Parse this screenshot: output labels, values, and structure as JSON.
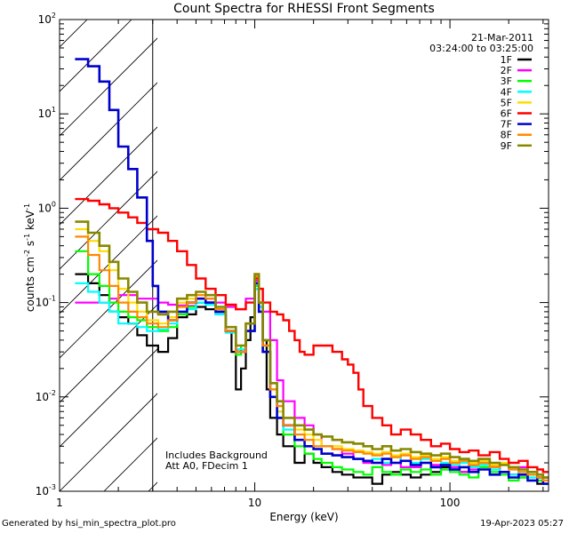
{
  "chart_data": {
    "type": "line",
    "title": "Count Spectra for RHESSI Front Segments",
    "xlabel": "Energy (keV)",
    "ylabel": "counts cm",
    "ylabel_units": {
      "sup1": "-2",
      "mid": " s",
      "sup2": "-1",
      "mid2": " keV",
      "sup3": "-1"
    },
    "xscale": "log",
    "yscale": "log",
    "xlim": [
      1,
      320
    ],
    "ylim": [
      0.001,
      100
    ],
    "x_ticks": [
      {
        "v": 1,
        "label": "1"
      },
      {
        "v": 10,
        "label": "10"
      },
      {
        "v": 100,
        "label": "100"
      }
    ],
    "y_ticks": [
      {
        "v": 0.001,
        "base": "10",
        "exp": "-3"
      },
      {
        "v": 0.01,
        "base": "10",
        "exp": "-2"
      },
      {
        "v": 0.1,
        "base": "10",
        "exp": "-1"
      },
      {
        "v": 1,
        "base": "10",
        "exp": "0"
      },
      {
        "v": 10,
        "base": "10",
        "exp": "1"
      },
      {
        "v": 100,
        "base": "10",
        "exp": "2"
      }
    ],
    "date": "21-Mar-2011",
    "time_range": "03:24:00 to 03:25:00",
    "annotation_lines": [
      "Includes Background",
      "Att A0, FDecim 1"
    ],
    "hatched_region_max_energy": 3,
    "series": [
      {
        "name": "1F",
        "color": "#000000",
        "width": 2.2,
        "x": [
          1.2,
          1.4,
          1.6,
          1.8,
          2.0,
          2.25,
          2.5,
          2.8,
          3.2,
          3.6,
          4.0,
          4.5,
          5.0,
          5.6,
          6.3,
          7.1,
          7.6,
          8.0,
          8.5,
          9.0,
          9.5,
          10.0,
          10.5,
          11.0,
          11.5,
          12,
          13,
          14,
          16,
          18,
          20,
          22,
          25,
          28,
          32,
          36,
          40,
          45,
          50,
          56,
          63,
          71,
          80,
          90,
          100,
          112,
          125,
          140,
          160,
          180,
          200,
          225,
          250,
          280,
          300
        ],
        "values": [
          0.2,
          0.16,
          0.12,
          0.08,
          0.07,
          0.06,
          0.045,
          0.035,
          0.03,
          0.042,
          0.07,
          0.075,
          0.09,
          0.085,
          0.075,
          0.05,
          0.03,
          0.012,
          0.02,
          0.04,
          0.07,
          0.14,
          0.08,
          0.04,
          0.012,
          0.006,
          0.004,
          0.003,
          0.002,
          0.0025,
          0.002,
          0.0018,
          0.0016,
          0.0015,
          0.0014,
          0.0014,
          0.0012,
          0.0015,
          0.0016,
          0.0015,
          0.0014,
          0.0015,
          0.0016,
          0.0018,
          0.0017,
          0.0016,
          0.0018,
          0.0022,
          0.0018,
          0.0016,
          0.0015,
          0.0014,
          0.0016,
          0.0012,
          0.0014
        ]
      },
      {
        "name": "2F",
        "color": "#ff00ff",
        "width": 2.2,
        "x": [
          1.2,
          1.4,
          1.6,
          1.8,
          2.0,
          2.25,
          2.5,
          2.8,
          3.2,
          3.6,
          4.0,
          4.5,
          5.0,
          5.6,
          6.3,
          7.1,
          8.0,
          9.0,
          10.0,
          10.5,
          11.0,
          12,
          13,
          14,
          16,
          18,
          20,
          22,
          25,
          28,
          32,
          36,
          40,
          45,
          50,
          56,
          63,
          71,
          80,
          90,
          100,
          112,
          125,
          140,
          160,
          180,
          200,
          225,
          250,
          280,
          300
        ],
        "values": [
          0.1,
          0.1,
          0.1,
          0.11,
          0.12,
          0.12,
          0.11,
          0.11,
          0.1,
          0.095,
          0.093,
          0.092,
          0.1,
          0.11,
          0.1,
          0.09,
          0.085,
          0.11,
          0.17,
          0.14,
          0.08,
          0.04,
          0.015,
          0.009,
          0.006,
          0.005,
          0.004,
          0.003,
          0.0028,
          0.0025,
          0.0022,
          0.002,
          0.002,
          0.0019,
          0.002,
          0.0018,
          0.0018,
          0.002,
          0.0019,
          0.0017,
          0.0018,
          0.0016,
          0.0017,
          0.0019,
          0.0018,
          0.0016,
          0.0015,
          0.0018,
          0.0016,
          0.0015,
          0.0014
        ]
      },
      {
        "name": "3F",
        "color": "#00ff00",
        "width": 2.2,
        "x": [
          1.2,
          1.4,
          1.6,
          1.8,
          2.0,
          2.25,
          2.5,
          2.8,
          3.2,
          3.6,
          4.0,
          4.5,
          5.0,
          5.6,
          6.3,
          7.1,
          8.0,
          8.5,
          9.0,
          10.0,
          10.5,
          11.0,
          12,
          13,
          14,
          16,
          18,
          20,
          22,
          25,
          28,
          32,
          36,
          40,
          45,
          50,
          56,
          63,
          71,
          80,
          90,
          100,
          112,
          125,
          140,
          160,
          180,
          200,
          225,
          250,
          280,
          300
        ],
        "values": [
          0.35,
          0.2,
          0.15,
          0.1,
          0.08,
          0.07,
          0.065,
          0.055,
          0.05,
          0.055,
          0.075,
          0.09,
          0.1,
          0.1,
          0.08,
          0.05,
          0.028,
          0.035,
          0.05,
          0.15,
          0.09,
          0.03,
          0.01,
          0.006,
          0.004,
          0.003,
          0.0025,
          0.0022,
          0.002,
          0.0018,
          0.0017,
          0.0016,
          0.0015,
          0.0018,
          0.0016,
          0.0015,
          0.0017,
          0.0016,
          0.0017,
          0.0015,
          0.0017,
          0.0016,
          0.0015,
          0.0014,
          0.0018,
          0.0016,
          0.0015,
          0.0013,
          0.0014,
          0.0015,
          0.0013,
          0.0012
        ]
      },
      {
        "name": "4F",
        "color": "#00ffff",
        "width": 2.2,
        "x": [
          1.2,
          1.4,
          1.6,
          1.8,
          2.0,
          2.25,
          2.5,
          2.8,
          3.2,
          3.6,
          4.0,
          4.5,
          5.0,
          5.6,
          6.3,
          7.1,
          8.0,
          9.0,
          10.0,
          10.5,
          11.0,
          12,
          13,
          14,
          16,
          18,
          20,
          22,
          25,
          28,
          32,
          36,
          40,
          45,
          50,
          56,
          63,
          71,
          80,
          90,
          100,
          112,
          125,
          140,
          160,
          180,
          200,
          225,
          250,
          280,
          300
        ],
        "values": [
          0.16,
          0.13,
          0.1,
          0.08,
          0.06,
          0.06,
          0.055,
          0.05,
          0.052,
          0.06,
          0.08,
          0.085,
          0.1,
          0.095,
          0.075,
          0.048,
          0.032,
          0.06,
          0.14,
          0.09,
          0.035,
          0.012,
          0.007,
          0.0045,
          0.0035,
          0.003,
          0.0028,
          0.0025,
          0.0024,
          0.0023,
          0.0022,
          0.0021,
          0.0022,
          0.002,
          0.0023,
          0.0021,
          0.002,
          0.0022,
          0.0021,
          0.002,
          0.0019,
          0.002,
          0.0018,
          0.0019,
          0.0017,
          0.0016,
          0.0015,
          0.0016,
          0.0014,
          0.0015,
          0.0013
        ]
      },
      {
        "name": "5F",
        "color": "#ffdd00",
        "width": 2.2,
        "x": [
          1.2,
          1.4,
          1.6,
          1.8,
          2.0,
          2.25,
          2.5,
          2.8,
          3.2,
          3.6,
          4.0,
          4.5,
          5.0,
          5.6,
          6.3,
          7.1,
          8.0,
          9.0,
          10.0,
          10.5,
          11.0,
          12,
          13,
          14,
          16,
          18,
          20,
          22,
          25,
          28,
          32,
          36,
          40,
          45,
          50,
          56,
          63,
          71,
          80,
          90,
          100,
          112,
          125,
          140,
          160,
          180,
          200,
          225,
          250,
          280,
          300
        ],
        "values": [
          0.6,
          0.45,
          0.35,
          0.22,
          0.14,
          0.1,
          0.08,
          0.065,
          0.06,
          0.07,
          0.1,
          0.11,
          0.12,
          0.12,
          0.09,
          0.05,
          0.03,
          0.06,
          0.18,
          0.1,
          0.035,
          0.012,
          0.007,
          0.005,
          0.0045,
          0.004,
          0.0035,
          0.003,
          0.003,
          0.0028,
          0.0027,
          0.0026,
          0.0025,
          0.0026,
          0.0024,
          0.0025,
          0.0023,
          0.0024,
          0.0022,
          0.0023,
          0.0021,
          0.0022,
          0.002,
          0.0021,
          0.0019,
          0.002,
          0.0018,
          0.0017,
          0.0016,
          0.0015,
          0.0014
        ]
      },
      {
        "name": "6F",
        "color": "#ff0000",
        "width": 2.4,
        "x": [
          1.2,
          1.4,
          1.6,
          1.8,
          2.0,
          2.25,
          2.5,
          2.8,
          3.2,
          3.6,
          4.0,
          4.5,
          5.0,
          5.6,
          6.3,
          7.1,
          8.0,
          9.0,
          10.0,
          10.5,
          11.0,
          12,
          13,
          14,
          15,
          16,
          17,
          18,
          20,
          22,
          25,
          28,
          30,
          32,
          34,
          36,
          40,
          45,
          50,
          56,
          63,
          71,
          80,
          90,
          100,
          112,
          125,
          140,
          160,
          180,
          200,
          225,
          250,
          280,
          300
        ],
        "values": [
          1.25,
          1.2,
          1.1,
          1.0,
          0.9,
          0.8,
          0.7,
          0.6,
          0.55,
          0.45,
          0.35,
          0.25,
          0.18,
          0.14,
          0.12,
          0.095,
          0.085,
          0.1,
          0.18,
          0.14,
          0.1,
          0.08,
          0.075,
          0.065,
          0.05,
          0.04,
          0.03,
          0.028,
          0.035,
          0.035,
          0.03,
          0.025,
          0.022,
          0.018,
          0.012,
          0.008,
          0.006,
          0.005,
          0.004,
          0.0045,
          0.004,
          0.0035,
          0.003,
          0.0032,
          0.0028,
          0.0026,
          0.0027,
          0.0024,
          0.0026,
          0.0022,
          0.002,
          0.0021,
          0.0018,
          0.0017,
          0.0016
        ]
      },
      {
        "name": "7F",
        "color": "#0000cc",
        "width": 2.6,
        "x": [
          1.2,
          1.4,
          1.6,
          1.8,
          2.0,
          2.25,
          2.5,
          2.8,
          3.0,
          3.2,
          3.6,
          4.0,
          4.5,
          5.0,
          5.6,
          6.3,
          7.1,
          8.0,
          9.0,
          10.0,
          10.5,
          11.0,
          12,
          13,
          14,
          16,
          18,
          20,
          22,
          25,
          28,
          32,
          36,
          40,
          45,
          50,
          56,
          63,
          71,
          80,
          90,
          100,
          112,
          125,
          140,
          160,
          180,
          200,
          225,
          250,
          280,
          300
        ],
        "values": [
          38,
          32,
          22,
          11,
          4.5,
          2.6,
          1.3,
          0.45,
          0.15,
          0.08,
          0.065,
          0.08,
          0.1,
          0.11,
          0.1,
          0.08,
          0.05,
          0.03,
          0.05,
          0.16,
          0.08,
          0.03,
          0.01,
          0.006,
          0.005,
          0.0035,
          0.003,
          0.0028,
          0.0025,
          0.0024,
          0.0023,
          0.0022,
          0.0021,
          0.002,
          0.0022,
          0.002,
          0.0021,
          0.0019,
          0.002,
          0.0018,
          0.0019,
          0.0017,
          0.0018,
          0.0016,
          0.0017,
          0.0015,
          0.0016,
          0.0014,
          0.0015,
          0.0013,
          0.0014,
          0.0012
        ]
      },
      {
        "name": "8F",
        "color": "#ff8800",
        "width": 2.2,
        "x": [
          1.2,
          1.4,
          1.6,
          1.8,
          2.0,
          2.25,
          2.5,
          2.8,
          3.2,
          3.6,
          4.0,
          4.5,
          5.0,
          5.6,
          6.3,
          7.1,
          8.0,
          9.0,
          10.0,
          10.5,
          11.0,
          12,
          13,
          14,
          16,
          18,
          20,
          22,
          25,
          28,
          32,
          36,
          40,
          45,
          50,
          56,
          63,
          71,
          80,
          90,
          100,
          112,
          125,
          140,
          160,
          180,
          200,
          225,
          250,
          280,
          300
        ],
        "values": [
          0.5,
          0.32,
          0.22,
          0.15,
          0.1,
          0.08,
          0.07,
          0.06,
          0.055,
          0.065,
          0.09,
          0.1,
          0.12,
          0.11,
          0.085,
          0.05,
          0.03,
          0.06,
          0.19,
          0.1,
          0.035,
          0.012,
          0.008,
          0.005,
          0.004,
          0.0035,
          0.003,
          0.003,
          0.0028,
          0.0027,
          0.0026,
          0.0025,
          0.0024,
          0.0025,
          0.0023,
          0.0024,
          0.0022,
          0.0023,
          0.0021,
          0.0022,
          0.002,
          0.0021,
          0.0019,
          0.002,
          0.0018,
          0.0019,
          0.0017,
          0.0016,
          0.0015,
          0.0014,
          0.0013
        ]
      },
      {
        "name": "9F",
        "color": "#888800",
        "width": 2.6,
        "x": [
          1.2,
          1.4,
          1.6,
          1.8,
          2.0,
          2.25,
          2.5,
          2.8,
          3.2,
          3.6,
          4.0,
          4.5,
          5.0,
          5.6,
          6.3,
          7.1,
          8.0,
          9.0,
          10.0,
          10.5,
          11.0,
          12,
          13,
          14,
          16,
          18,
          20,
          22,
          25,
          28,
          32,
          36,
          40,
          45,
          50,
          56,
          63,
          71,
          80,
          90,
          100,
          112,
          125,
          140,
          160,
          180,
          200,
          225,
          250,
          280,
          300
        ],
        "values": [
          0.72,
          0.55,
          0.4,
          0.27,
          0.18,
          0.13,
          0.1,
          0.08,
          0.075,
          0.08,
          0.11,
          0.12,
          0.13,
          0.12,
          0.09,
          0.055,
          0.035,
          0.06,
          0.2,
          0.1,
          0.04,
          0.014,
          0.009,
          0.006,
          0.005,
          0.0045,
          0.004,
          0.0038,
          0.0035,
          0.0033,
          0.0032,
          0.003,
          0.0028,
          0.003,
          0.0027,
          0.0028,
          0.0026,
          0.0025,
          0.0024,
          0.0025,
          0.0023,
          0.0022,
          0.0021,
          0.0022,
          0.002,
          0.0019,
          0.0018,
          0.0017,
          0.0016,
          0.0015,
          0.0014
        ]
      }
    ]
  },
  "footer": {
    "generated_by": "Generated by hsi_min_spectra_plot.pro",
    "timestamp": "19-Apr-2023 05:27"
  }
}
